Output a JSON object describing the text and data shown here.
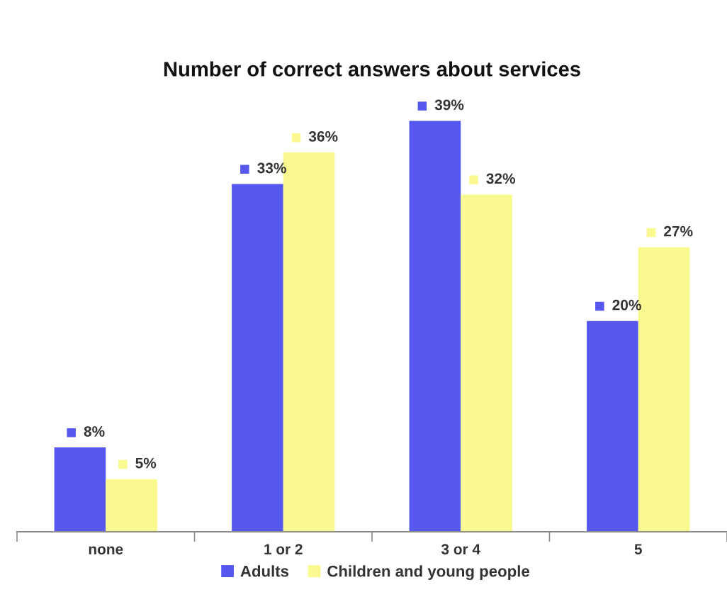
{
  "chart_data": {
    "type": "bar",
    "title": "Number of correct answers about services",
    "categories": [
      "none",
      "1 or 2",
      "3 or 4",
      "5"
    ],
    "series": [
      {
        "name": "Adults",
        "color": "#5557ee",
        "values": [
          8,
          33,
          39,
          20
        ],
        "value_labels": [
          "8%",
          "33%",
          "39%",
          "20%"
        ]
      },
      {
        "name": "Children and young people",
        "color": "#f9f98f",
        "values": [
          5,
          36,
          32,
          27
        ],
        "value_labels": [
          "5%",
          "36%",
          "32%",
          "27%"
        ]
      }
    ],
    "legend": "bottom"
  }
}
